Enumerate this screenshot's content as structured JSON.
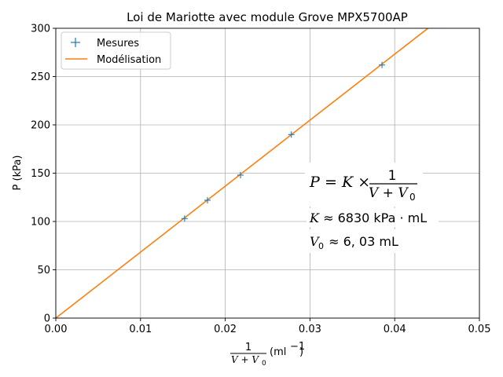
{
  "chart_data": {
    "type": "scatter",
    "title": "Loi de Mariotte avec module Grove MPX5700AP",
    "xlabel": {
      "fraction_numerator": "1",
      "fraction_denominator": "V + V",
      "denominator_subscript": "0",
      "unit_prefix": "(ml",
      "unit_superscript": "−1",
      "unit_suffix": ")"
    },
    "ylabel": "P (kPa)",
    "xlim": [
      0.0,
      0.05
    ],
    "ylim": [
      0,
      300
    ],
    "x_ticks": [
      "0.00",
      "0.01",
      "0.02",
      "0.03",
      "0.04",
      "0.05"
    ],
    "x_tick_values": [
      0.0,
      0.01,
      0.02,
      0.03,
      0.04,
      0.05
    ],
    "y_ticks": [
      "0",
      "50",
      "100",
      "150",
      "200",
      "250",
      "300"
    ],
    "y_tick_values": [
      0,
      50,
      100,
      150,
      200,
      250,
      300
    ],
    "grid": true,
    "legend_position": "top-left",
    "series": [
      {
        "name": "Mesures",
        "type": "scatter",
        "marker": "+",
        "color": "#1f77b4",
        "x": [
          0.0152,
          0.0179,
          0.0218,
          0.0278,
          0.0385
        ],
        "y": [
          103,
          122,
          148,
          190,
          262
        ]
      },
      {
        "name": "Modélisation",
        "type": "line",
        "color": "#ff7f0e",
        "x": [
          0.0,
          0.05
        ],
        "y": [
          0,
          341.5
        ]
      }
    ],
    "annotation": {
      "equation": {
        "lhs": "P",
        "mid": " = K × ",
        "frac_num": "1",
        "frac_den": "V + V",
        "frac_den_sub": "0"
      },
      "k_line": {
        "var": "K",
        "text": " ≈ 6830 kPa · mL"
      },
      "v0_line": {
        "var": "V",
        "sub": "0",
        "text": " ≈ 6, 03 mL"
      }
    }
  }
}
